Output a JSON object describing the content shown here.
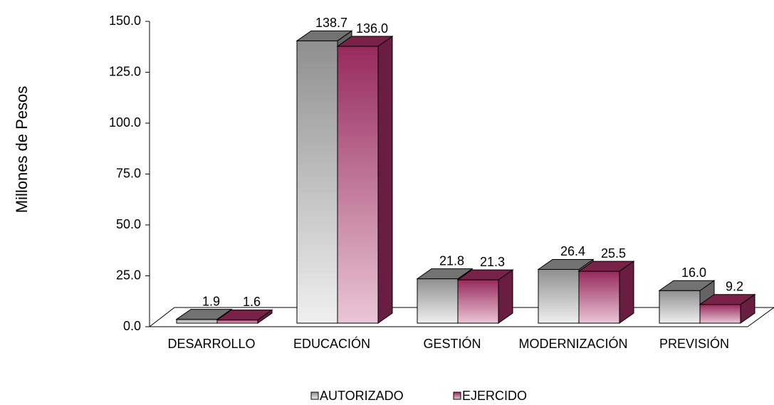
{
  "chart_data": {
    "type": "bar3d",
    "y_label": "Millones de Pesos",
    "categories": [
      "DESARROLLO",
      "EDUCACIÓN",
      "GESTIÓN",
      "MODERNIZACIÓN",
      "PREVISIÓN"
    ],
    "series": [
      {
        "name": "AUTORIZADO",
        "color": "#8f8f8f",
        "light": "#f0f0f0",
        "values": [
          1.9,
          138.7,
          21.8,
          26.4,
          16.0
        ],
        "value_labels": [
          "1.9",
          "138.7",
          "21.8",
          "26.4",
          "16.0"
        ]
      },
      {
        "name": "EJERCIDO",
        "color": "#962a5c",
        "light": "#ebc6d8",
        "values": [
          1.6,
          136.0,
          21.3,
          25.5,
          9.2
        ],
        "value_labels": [
          "1.6",
          "136.0",
          "21.3",
          "25.5",
          "9.2"
        ]
      }
    ],
    "ylim": [
      0,
      150
    ],
    "yticks": [
      {
        "value": 0,
        "label": "0.0"
      },
      {
        "value": 25,
        "label": "25.0"
      },
      {
        "value": 50,
        "label": "50.0"
      },
      {
        "value": 75,
        "label": "75.0"
      },
      {
        "value": 100,
        "label": "100.0"
      },
      {
        "value": 125,
        "label": "125.0"
      },
      {
        "value": 150,
        "label": "150.0"
      }
    ],
    "legend": "bottom"
  }
}
